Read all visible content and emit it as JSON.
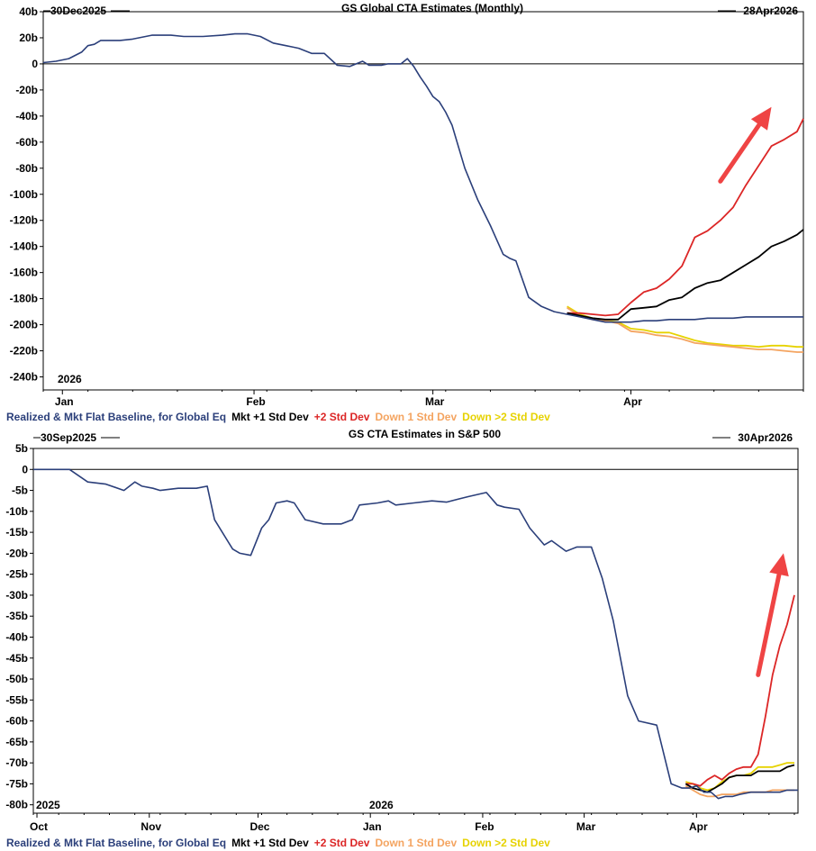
{
  "chart_data": [
    {
      "type": "line",
      "title": "GS Global CTA Estimates (Monthly)",
      "start_label": "30Dec2025",
      "end_label": "28Apr2026",
      "year_label": "2026",
      "ylim": [
        -250,
        40
      ],
      "yticks": [
        40,
        20,
        0,
        -20,
        -40,
        -60,
        -80,
        -100,
        -120,
        -140,
        -160,
        -180,
        -200,
        -220,
        -240
      ],
      "ytick_labels": [
        "40b",
        "20b",
        "0",
        "-20b",
        "-40b",
        "-60b",
        "-80b",
        "-100b",
        "-120b",
        "-140b",
        "-160b",
        "-180b",
        "-200b",
        "-220b",
        "-240b"
      ],
      "x_unit": "days since 30Dec2025",
      "xlim": [
        0,
        119
      ],
      "xticks": [
        {
          "label": "Jan",
          "x": 3
        },
        {
          "label": "Feb",
          "x": 33
        },
        {
          "label": "Mar",
          "x": 61
        },
        {
          "label": "Apr",
          "x": 92
        }
      ],
      "legend": [
        "Realized & Mkt Flat Baseline, for Global Eq",
        "Mkt +1 Std Dev",
        "+2 Std Dev",
        "Down 1 Std Dev",
        "Down >2 Std Dev"
      ],
      "arrow": {
        "from": [
          106,
          -90
        ],
        "to": [
          114,
          -33
        ]
      },
      "series": [
        {
          "name": "Realized & Mkt Flat Baseline, for Global Eq",
          "color": "#2b3f7a",
          "x": [
            0,
            2,
            4,
            6,
            7,
            8,
            9,
            10,
            12,
            14,
            17,
            18,
            20,
            22,
            25,
            28,
            30,
            31,
            32,
            34,
            36,
            38,
            39,
            40,
            42,
            44,
            46,
            48,
            50,
            51,
            52,
            53,
            54,
            55,
            56,
            57,
            58,
            59,
            60,
            61,
            62,
            63,
            64,
            66,
            68,
            70,
            72,
            73,
            74,
            76,
            78,
            80,
            82,
            84,
            86,
            88,
            90,
            92,
            94,
            96,
            98,
            100,
            102,
            104,
            106,
            108,
            110,
            112,
            114,
            116,
            119
          ],
          "y": [
            1,
            2,
            4,
            9,
            14,
            15,
            18,
            18,
            18,
            19,
            22,
            22,
            22,
            21,
            21,
            22,
            23,
            23,
            23,
            21,
            16,
            14,
            13,
            12,
            8,
            8,
            -1,
            -2,
            2,
            -1,
            -1,
            -1,
            0,
            0,
            0,
            4,
            -2,
            -10,
            -17,
            -25,
            -29,
            -37,
            -47,
            -80,
            -104,
            -124,
            -146,
            -149,
            -151,
            -179,
            -186,
            -190,
            -192,
            -194,
            -196,
            -198,
            -198,
            -198,
            -197,
            -197,
            -196,
            -196,
            -196,
            -195,
            -195,
            -195,
            -194,
            -194,
            -194,
            -194,
            -194
          ]
        },
        {
          "name": "Mkt +1 Std Dev",
          "color": "#000000",
          "x": [
            82,
            84,
            86,
            88,
            90,
            92,
            94,
            96,
            98,
            100,
            102,
            104,
            106,
            108,
            110,
            112,
            114,
            116,
            118,
            119
          ],
          "y": [
            -191,
            -193,
            -195,
            -196,
            -196,
            -188,
            -187,
            -186,
            -181,
            -179,
            -172,
            -168,
            -166,
            -160,
            -154,
            -148,
            -140,
            -136,
            -131,
            -127
          ]
        },
        {
          "name": "+2 Std Dev",
          "color": "#dc2626",
          "x": [
            82,
            84,
            86,
            88,
            90,
            92,
            94,
            96,
            98,
            100,
            102,
            104,
            106,
            108,
            110,
            112,
            114,
            116,
            118,
            119
          ],
          "y": [
            -191,
            -191,
            -192,
            -193,
            -192,
            -183,
            -175,
            -172,
            -165,
            -155,
            -133,
            -128,
            -120,
            -110,
            -93,
            -78,
            -63,
            -58,
            -52,
            -42
          ]
        },
        {
          "name": "Down 1 Std Dev",
          "color": "#f4a460",
          "x": [
            82,
            84,
            86,
            88,
            90,
            92,
            94,
            96,
            98,
            100,
            102,
            104,
            106,
            108,
            110,
            112,
            114,
            116,
            118,
            119
          ],
          "y": [
            -187,
            -193,
            -196,
            -197,
            -199,
            -205,
            -206,
            -208,
            -209,
            -211,
            -214,
            -215,
            -216,
            -217,
            -218,
            -219,
            -219,
            -220,
            -221,
            -221
          ]
        },
        {
          "name": "Down >2 Std Dev",
          "color": "#e6d200",
          "x": [
            82,
            84,
            86,
            88,
            90,
            92,
            94,
            96,
            98,
            100,
            102,
            104,
            106,
            108,
            110,
            112,
            114,
            116,
            118,
            119
          ],
          "y": [
            -186,
            -192,
            -195,
            -197,
            -198,
            -203,
            -204,
            -206,
            -206,
            -209,
            -212,
            -214,
            -215,
            -216,
            -216,
            -217,
            -216,
            -216,
            -217,
            -217
          ]
        }
      ]
    },
    {
      "type": "line",
      "title": "GS CTA Estimates in S&P 500",
      "start_label": "30Sep2025",
      "end_label": "30Apr2026",
      "year_labels": [
        {
          "label": "2025",
          "x": 0
        },
        {
          "label": "2026",
          "x": 89
        }
      ],
      "ylim": [
        -82,
        5
      ],
      "yticks": [
        5,
        0,
        -5,
        -10,
        -15,
        -20,
        -25,
        -30,
        -35,
        -40,
        -45,
        -50,
        -55,
        -60,
        -65,
        -70,
        -75,
        -80
      ],
      "ytick_labels": [
        "5b",
        "0",
        "-5b",
        "-10b",
        "-15b",
        "-20b",
        "-25b",
        "-30b",
        "-35b",
        "-40b",
        "-45b",
        "-50b",
        "-55b",
        "-60b",
        "-65b",
        "-70b",
        "-75b",
        "-80b"
      ],
      "x_unit": "days since 30Sep2025",
      "xlim": [
        0,
        211
      ],
      "xticks": [
        {
          "label": "Oct",
          "x": 1
        },
        {
          "label": "Nov",
          "x": 32
        },
        {
          "label": "Dec",
          "x": 62
        },
        {
          "label": "Jan",
          "x": 93
        },
        {
          "label": "Feb",
          "x": 124
        },
        {
          "label": "Mar",
          "x": 152
        },
        {
          "label": "Apr",
          "x": 183
        }
      ],
      "legend": [
        "Realized & Mkt Flat Baseline, for Global Eq",
        "Mkt +1 Std Dev",
        "+2 Std Dev",
        "Down 1 Std Dev",
        "Down >2 Std Dev"
      ],
      "arrow": {
        "from": [
          200,
          -49
        ],
        "to": [
          207,
          -20
        ]
      },
      "series": [
        {
          "name": "Realized & Mkt Flat Baseline, for Global Eq",
          "color": "#2b3f7a",
          "x": [
            0,
            5,
            10,
            15,
            20,
            25,
            28,
            30,
            33,
            35,
            40,
            45,
            48,
            50,
            55,
            57,
            60,
            63,
            65,
            67,
            70,
            72,
            75,
            80,
            85,
            88,
            90,
            95,
            98,
            100,
            105,
            110,
            114,
            120,
            125,
            128,
            130,
            134,
            137,
            141,
            143,
            147,
            150,
            154,
            157,
            160,
            164,
            167,
            172,
            176,
            179,
            181,
            183,
            185,
            187,
            189,
            191,
            193,
            195,
            198,
            202,
            206,
            208,
            211
          ],
          "y": [
            0,
            0,
            0,
            -3,
            -3.5,
            -5,
            -3,
            -4,
            -4.5,
            -5,
            -4.5,
            -4.5,
            -4,
            -12,
            -19,
            -20,
            -20.5,
            -14,
            -12,
            -8,
            -7.5,
            -8,
            -12,
            -13,
            -13,
            -12,
            -8.5,
            -8,
            -7.5,
            -8.5,
            -8,
            -7.5,
            -7.8,
            -6.5,
            -5.5,
            -8.5,
            -9,
            -9.5,
            -14,
            -18,
            -17,
            -19.5,
            -18.5,
            -18.5,
            -26,
            -36,
            -54,
            -60,
            -61,
            -75,
            -76,
            -76,
            -75.5,
            -77,
            -77,
            -78.5,
            -78,
            -78,
            -77.5,
            -77,
            -77,
            -77,
            -76.5,
            -76.5
          ]
        },
        {
          "name": "Mkt +1 Std Dev",
          "color": "#000000",
          "x": [
            180,
            182,
            184,
            186,
            188,
            190,
            192,
            194,
            196,
            198,
            200,
            202,
            204,
            206,
            208,
            210
          ],
          "y": [
            -75,
            -76,
            -76.5,
            -77,
            -76,
            -75,
            -73.5,
            -73,
            -73,
            -73,
            -72,
            -72,
            -72,
            -72,
            -71,
            -70.5
          ]
        },
        {
          "name": "+2 Std Dev",
          "color": "#dc2626",
          "x": [
            180,
            182,
            184,
            186,
            188,
            190,
            192,
            194,
            196,
            198,
            200,
            202,
            204,
            206,
            208,
            210
          ],
          "y": [
            -75,
            -75,
            -75.5,
            -74,
            -73,
            -74,
            -72.5,
            -71.5,
            -71,
            -71,
            -68,
            -59,
            -49,
            -42,
            -37,
            -30
          ]
        },
        {
          "name": "Down 1 Std Dev",
          "color": "#f4a460",
          "x": [
            180,
            182,
            184,
            186,
            188,
            190,
            192,
            194,
            196,
            198,
            200,
            202,
            204,
            206,
            208,
            210
          ],
          "y": [
            -75.5,
            -76.5,
            -77.5,
            -78,
            -78,
            -77.5,
            -77.5,
            -77.5,
            -77,
            -77,
            -77,
            -77,
            -76.5,
            -76.5,
            -76.5,
            -76.5
          ]
        },
        {
          "name": "Down >2 Std Dev",
          "color": "#e6d200",
          "x": [
            180,
            182,
            184,
            186,
            188,
            190,
            192,
            194,
            196,
            198,
            200,
            202,
            204,
            206,
            208,
            210
          ],
          "y": [
            -74.5,
            -75,
            -76,
            -76.5,
            -76,
            -74.5,
            -73.5,
            -73,
            -73,
            -72.5,
            -71,
            -71,
            -71,
            -70.5,
            -70,
            -70
          ]
        }
      ]
    }
  ]
}
